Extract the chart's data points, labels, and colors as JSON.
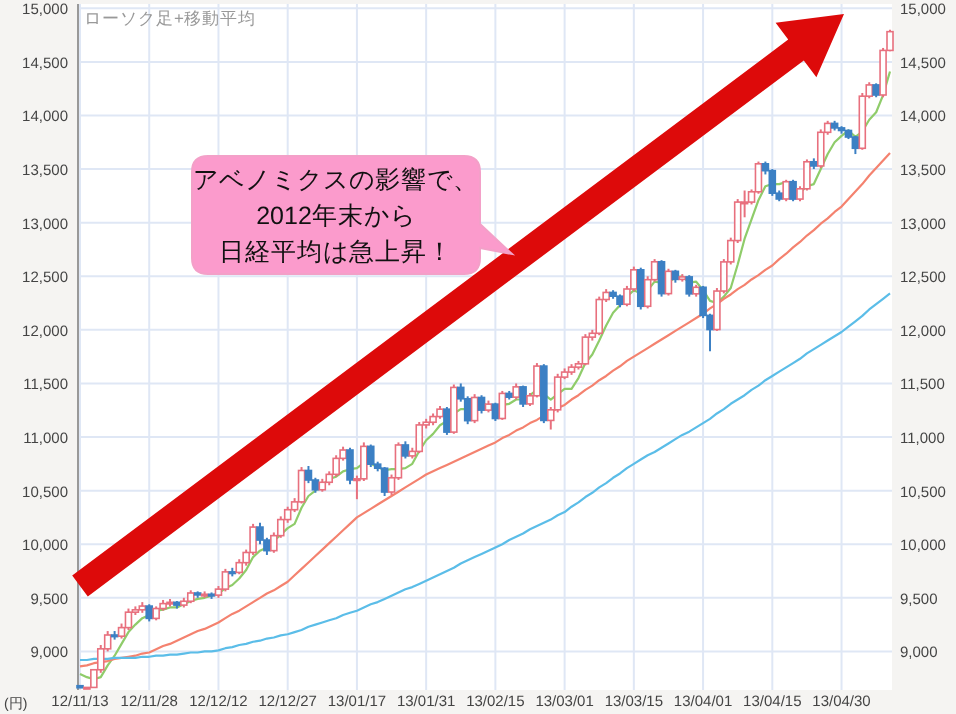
{
  "chart_data": {
    "type": "candlestick",
    "title": "ローソク足+移動平均",
    "annotations": [
      "アベノミクスの影響で、",
      "2012年末から",
      "日経平均は急上昇！",
      "(円)"
    ],
    "categories": [
      "12/11/13",
      null,
      null,
      null,
      null,
      null,
      null,
      null,
      null,
      null,
      "12/11/28",
      null,
      null,
      null,
      null,
      null,
      null,
      null,
      null,
      null,
      "12/12/12",
      null,
      null,
      null,
      null,
      null,
      null,
      null,
      null,
      null,
      "12/12/27",
      null,
      null,
      null,
      null,
      null,
      null,
      null,
      null,
      null,
      "13/01/17",
      null,
      null,
      null,
      null,
      null,
      null,
      null,
      null,
      null,
      "13/01/31",
      null,
      null,
      null,
      null,
      null,
      null,
      null,
      null,
      null,
      "13/02/15",
      null,
      null,
      null,
      null,
      null,
      null,
      null,
      null,
      null,
      "13/03/01",
      null,
      null,
      null,
      null,
      null,
      null,
      null,
      null,
      null,
      "13/03/15",
      null,
      null,
      null,
      null,
      null,
      null,
      null,
      null,
      null,
      "13/04/01",
      null,
      null,
      null,
      null,
      null,
      null,
      null,
      null,
      null,
      "13/04/15",
      null,
      null,
      null,
      null,
      null,
      null,
      null,
      null,
      null,
      "13/04/30",
      null,
      null,
      null,
      null,
      null,
      null,
      null
    ],
    "ohlc": [
      [
        8680,
        8680,
        8661,
        8661
      ],
      [
        8661,
        8664,
        8661,
        8664
      ],
      [
        8664,
        8829,
        8664,
        8829
      ],
      [
        8829,
        9060,
        8800,
        9024
      ],
      [
        9024,
        9190,
        9000,
        9153
      ],
      [
        9153,
        9190,
        9110,
        9142
      ],
      [
        9142,
        9260,
        9120,
        9222
      ],
      [
        9222,
        9400,
        9200,
        9366
      ],
      [
        9366,
        9420,
        9340,
        9388
      ],
      [
        9388,
        9460,
        9360,
        9423
      ],
      [
        9423,
        9440,
        9280,
        9308
      ],
      [
        9308,
        9420,
        9290,
        9400
      ],
      [
        9400,
        9480,
        9380,
        9446
      ],
      [
        9446,
        9490,
        9420,
        9458
      ],
      [
        9458,
        9470,
        9400,
        9432
      ],
      [
        9432,
        9500,
        9410,
        9468
      ],
      [
        9468,
        9570,
        9450,
        9545
      ],
      [
        9545,
        9560,
        9500,
        9527
      ],
      [
        9527,
        9560,
        9500,
        9533
      ],
      [
        9533,
        9550,
        9490,
        9525
      ],
      [
        9525,
        9610,
        9500,
        9581
      ],
      [
        9581,
        9770,
        9560,
        9742
      ],
      [
        9742,
        9780,
        9700,
        9737
      ],
      [
        9737,
        9860,
        9720,
        9828
      ],
      [
        9828,
        9950,
        9800,
        9923
      ],
      [
        9923,
        10190,
        9900,
        10160
      ],
      [
        10160,
        10200,
        10000,
        10039
      ],
      [
        10039,
        10060,
        9900,
        9940
      ],
      [
        9940,
        10110,
        9920,
        10080
      ],
      [
        10080,
        10260,
        10060,
        10230
      ],
      [
        10230,
        10350,
        10200,
        10322
      ],
      [
        10322,
        10430,
        10300,
        10395
      ],
      [
        10395,
        10720,
        10380,
        10688
      ],
      [
        10688,
        10730,
        10570,
        10599
      ],
      [
        10599,
        10620,
        10480,
        10508
      ],
      [
        10508,
        10610,
        10490,
        10578
      ],
      [
        10578,
        10680,
        10550,
        10652
      ],
      [
        10652,
        10830,
        10630,
        10801
      ],
      [
        10801,
        10910,
        10780,
        10879
      ],
      [
        10879,
        10900,
        10560,
        10600
      ],
      [
        10600,
        10640,
        10420,
        10610
      ],
      [
        10610,
        10950,
        10590,
        10913
      ],
      [
        10913,
        10930,
        10720,
        10747
      ],
      [
        10747,
        10770,
        10680,
        10709
      ],
      [
        10709,
        10720,
        10450,
        10487
      ],
      [
        10487,
        10650,
        10460,
        10620
      ],
      [
        10620,
        10950,
        10600,
        10926
      ],
      [
        10926,
        10960,
        10800,
        10824
      ],
      [
        10824,
        10900,
        10800,
        10866
      ],
      [
        10866,
        11140,
        10850,
        11113
      ],
      [
        11113,
        11170,
        11080,
        11138
      ],
      [
        11138,
        11220,
        11110,
        11191
      ],
      [
        11191,
        11290,
        11170,
        11260
      ],
      [
        11260,
        11280,
        11020,
        11046
      ],
      [
        11046,
        11490,
        11030,
        11463
      ],
      [
        11463,
        11500,
        11330,
        11357
      ],
      [
        11357,
        11380,
        11120,
        11153
      ],
      [
        11153,
        11400,
        11130,
        11369
      ],
      [
        11369,
        11390,
        11220,
        11251
      ],
      [
        11251,
        11340,
        11230,
        11307
      ],
      [
        11307,
        11320,
        11150,
        11173
      ],
      [
        11173,
        11430,
        11160,
        11407
      ],
      [
        11407,
        11430,
        11350,
        11372
      ],
      [
        11372,
        11500,
        11350,
        11468
      ],
      [
        11468,
        11480,
        11280,
        11309
      ],
      [
        11309,
        11410,
        11290,
        11385
      ],
      [
        11385,
        11690,
        11370,
        11662
      ],
      [
        11662,
        11680,
        11130,
        11155
      ],
      [
        11155,
        11280,
        11070,
        11254
      ],
      [
        11254,
        11590,
        11230,
        11559
      ],
      [
        11559,
        11640,
        11540,
        11606
      ],
      [
        11606,
        11680,
        11580,
        11652
      ],
      [
        11652,
        11710,
        11630,
        11683
      ],
      [
        11683,
        11960,
        11670,
        11932
      ],
      [
        11932,
        12000,
        11900,
        11968
      ],
      [
        11968,
        12310,
        11950,
        12283
      ],
      [
        12283,
        12380,
        12260,
        12349
      ],
      [
        12349,
        12370,
        12290,
        12314
      ],
      [
        12314,
        12330,
        12210,
        12239
      ],
      [
        12239,
        12410,
        12220,
        12381
      ],
      [
        12381,
        12590,
        12360,
        12560
      ],
      [
        12560,
        12580,
        12190,
        12220
      ],
      [
        12220,
        12500,
        12200,
        12468
      ],
      [
        12468,
        12660,
        12450,
        12635
      ],
      [
        12635,
        12650,
        12310,
        12338
      ],
      [
        12338,
        12570,
        12320,
        12546
      ],
      [
        12546,
        12560,
        12440,
        12471
      ],
      [
        12471,
        12520,
        12450,
        12494
      ],
      [
        12494,
        12510,
        12310,
        12336
      ],
      [
        12336,
        12420,
        12310,
        12397
      ],
      [
        12397,
        12410,
        12110,
        12135
      ],
      [
        12135,
        12150,
        11800,
        12003
      ],
      [
        12003,
        12390,
        11990,
        12362
      ],
      [
        12362,
        12660,
        12340,
        12634
      ],
      [
        12634,
        12860,
        12610,
        12833
      ],
      [
        12833,
        13220,
        12810,
        13192
      ],
      [
        13192,
        13300,
        13050,
        13192
      ],
      [
        13192,
        13310,
        13170,
        13288
      ],
      [
        13288,
        13570,
        13270,
        13549
      ],
      [
        13549,
        13570,
        13450,
        13485
      ],
      [
        13485,
        13500,
        13250,
        13275
      ],
      [
        13275,
        13300,
        13200,
        13221
      ],
      [
        13221,
        13400,
        13200,
        13382
      ],
      [
        13382,
        13400,
        13200,
        13220
      ],
      [
        13220,
        13340,
        13200,
        13316
      ],
      [
        13316,
        13590,
        13300,
        13568
      ],
      [
        13568,
        13600,
        13500,
        13529
      ],
      [
        13529,
        13870,
        13510,
        13843
      ],
      [
        13843,
        13950,
        13820,
        13926
      ],
      [
        13926,
        13950,
        13860,
        13884
      ],
      [
        13884,
        13900,
        13830,
        13860
      ],
      [
        13860,
        13870,
        13780,
        13799
      ],
      [
        13799,
        13810,
        13640,
        13694
      ],
      [
        13694,
        14210,
        13680,
        14180
      ],
      [
        14180,
        14310,
        14160,
        14285
      ],
      [
        14285,
        14300,
        14170,
        14191
      ],
      [
        14191,
        14630,
        14170,
        14607
      ],
      [
        14607,
        14800,
        14600,
        14782
      ]
    ],
    "colors": [
      "#3c80c4",
      "#e8707e",
      "#e8707e",
      "#e8707e",
      "#e8707e",
      "#3c80c4",
      "#e8707e",
      "#e8707e",
      "#e8707e",
      "#e8707e",
      "#3c80c4",
      "#e8707e",
      "#e8707e",
      "#e8707e",
      "#3c80c4",
      "#e8707e",
      "#e8707e",
      "#3c80c4",
      "#e8707e",
      "#3c80c4",
      "#e8707e",
      "#e8707e",
      "#3c80c4",
      "#e8707e",
      "#e8707e",
      "#e8707e",
      "#3c80c4",
      "#3c80c4",
      "#e8707e",
      "#e8707e",
      "#e8707e",
      "#e8707e",
      "#e8707e",
      "#3c80c4",
      "#3c80c4",
      "#e8707e",
      "#e8707e",
      "#e8707e",
      "#e8707e",
      "#3c80c4",
      "#e8707e",
      "#e8707e",
      "#3c80c4",
      "#3c80c4",
      "#3c80c4",
      "#e8707e",
      "#e8707e",
      "#3c80c4",
      "#e8707e",
      "#e8707e",
      "#e8707e",
      "#e8707e",
      "#e8707e",
      "#3c80c4",
      "#e8707e",
      "#3c80c4",
      "#3c80c4",
      "#e8707e",
      "#3c80c4",
      "#e8707e",
      "#3c80c4",
      "#e8707e",
      "#3c80c4",
      "#e8707e",
      "#3c80c4",
      "#e8707e",
      "#e8707e",
      "#3c80c4",
      "#e8707e",
      "#e8707e",
      "#e8707e",
      "#e8707e",
      "#e8707e",
      "#e8707e",
      "#e8707e",
      "#e8707e",
      "#e8707e",
      "#3c80c4",
      "#3c80c4",
      "#e8707e",
      "#e8707e",
      "#3c80c4",
      "#e8707e",
      "#e8707e",
      "#3c80c4",
      "#e8707e",
      "#3c80c4",
      "#e8707e",
      "#3c80c4",
      "#e8707e",
      "#3c80c4",
      "#3c80c4",
      "#e8707e",
      "#e8707e",
      "#e8707e",
      "#e8707e",
      "#e8707e",
      "#e8707e",
      "#e8707e",
      "#3c80c4",
      "#3c80c4",
      "#3c80c4",
      "#e8707e",
      "#3c80c4",
      "#e8707e",
      "#e8707e",
      "#3c80c4",
      "#e8707e",
      "#e8707e",
      "#3c80c4",
      "#3c80c4",
      "#3c80c4",
      "#3c80c4",
      "#e8707e",
      "#e8707e",
      "#3c80c4",
      "#e8707e",
      "#e8707e"
    ],
    "series": [
      {
        "type": "line",
        "color": "#8fcc6a",
        "values": [
          8790,
          8760,
          8740,
          8760,
          8870,
          8960,
          9070,
          9180,
          9250,
          9310,
          9340,
          9380,
          9390,
          9410,
          9410,
          9440,
          9470,
          9490,
          9500,
          9520,
          9540,
          9590,
          9620,
          9680,
          9760,
          9880,
          9940,
          9970,
          10030,
          10090,
          10150,
          10190,
          10340,
          10450,
          10500,
          10550,
          10610,
          10630,
          10680,
          10700,
          10710,
          10760,
          10750,
          10720,
          10690,
          10700,
          10700,
          10710,
          10750,
          10870,
          10970,
          11030,
          11110,
          11150,
          11220,
          11260,
          11260,
          11280,
          11320,
          11290,
          11250,
          11300,
          11310,
          11350,
          11350,
          11390,
          11440,
          11400,
          11350,
          11400,
          11450,
          11450,
          11550,
          11690,
          11770,
          11900,
          12040,
          12160,
          12230,
          12310,
          12370,
          12340,
          12370,
          12450,
          12440,
          12440,
          12490,
          12500,
          12440,
          12450,
          12370,
          12270,
          12250,
          12310,
          12390,
          12610,
          12850,
          13030,
          13210,
          13340,
          13360,
          13360,
          13380,
          13320,
          13280,
          13340,
          13360,
          13500,
          13640,
          13750,
          13810,
          13860,
          13800,
          13850,
          13960,
          14030,
          14190,
          14410
        ]
      },
      {
        "type": "line",
        "color": "#f4826f",
        "values": [
          8860,
          8870,
          8890,
          8900,
          8910,
          8930,
          8940,
          8950,
          8960,
          8980,
          8990,
          9020,
          9050,
          9070,
          9100,
          9130,
          9160,
          9190,
          9210,
          9240,
          9270,
          9310,
          9350,
          9380,
          9420,
          9460,
          9500,
          9540,
          9570,
          9610,
          9650,
          9710,
          9770,
          9830,
          9890,
          9950,
          10010,
          10070,
          10130,
          10190,
          10250,
          10290,
          10330,
          10370,
          10410,
          10450,
          10490,
          10530,
          10570,
          10610,
          10650,
          10680,
          10710,
          10740,
          10770,
          10800,
          10830,
          10860,
          10890,
          10920,
          10950,
          10990,
          11020,
          11060,
          11090,
          11130,
          11160,
          11200,
          11230,
          11270,
          11300,
          11350,
          11390,
          11440,
          11480,
          11530,
          11570,
          11620,
          11660,
          11710,
          11750,
          11790,
          11830,
          11870,
          11910,
          11950,
          11990,
          12030,
          12070,
          12110,
          12150,
          12200,
          12240,
          12290,
          12330,
          12380,
          12420,
          12470,
          12510,
          12560,
          12600,
          12660,
          12710,
          12770,
          12820,
          12880,
          12930,
          12990,
          13040,
          13100,
          13150,
          13220,
          13290,
          13360,
          13440,
          13510,
          13580,
          13650
        ]
      },
      {
        "type": "line",
        "color": "#5bbde8",
        "values": [
          8920,
          8920,
          8930,
          8930,
          8930,
          8940,
          8940,
          8940,
          8940,
          8950,
          8950,
          8960,
          8960,
          8970,
          8970,
          8980,
          8990,
          8990,
          9000,
          9000,
          9010,
          9030,
          9040,
          9060,
          9070,
          9090,
          9100,
          9120,
          9130,
          9150,
          9160,
          9180,
          9200,
          9230,
          9250,
          9270,
          9290,
          9310,
          9340,
          9360,
          9380,
          9410,
          9440,
          9460,
          9490,
          9520,
          9550,
          9580,
          9600,
          9630,
          9660,
          9690,
          9720,
          9750,
          9780,
          9820,
          9850,
          9880,
          9910,
          9940,
          9970,
          10000,
          10040,
          10070,
          10100,
          10140,
          10170,
          10200,
          10230,
          10270,
          10300,
          10350,
          10390,
          10440,
          10480,
          10530,
          10570,
          10620,
          10660,
          10710,
          10750,
          10790,
          10830,
          10860,
          10900,
          10940,
          10980,
          11020,
          11050,
          11090,
          11130,
          11170,
          11220,
          11260,
          11310,
          11350,
          11390,
          11440,
          11480,
          11530,
          11570,
          11610,
          11650,
          11690,
          11730,
          11780,
          11820,
          11860,
          11900,
          11940,
          11980,
          12030,
          12080,
          12130,
          12190,
          12240,
          12290,
          12340
        ]
      }
    ],
    "ylim": [
      8640,
      15040
    ],
    "yticks": [
      {
        "value": 9000,
        "label": "9,000"
      },
      {
        "value": 9500,
        "label": "9,500"
      },
      {
        "value": 10000,
        "label": "10,000"
      },
      {
        "value": 10500,
        "label": "10,500"
      },
      {
        "value": 11000,
        "label": "11,000"
      },
      {
        "value": 11500,
        "label": "11,500"
      },
      {
        "value": 12000,
        "label": "12,000"
      },
      {
        "value": 12500,
        "label": "12,500"
      },
      {
        "value": 13000,
        "label": "13,000"
      },
      {
        "value": 13500,
        "label": "13,500"
      },
      {
        "value": 14000,
        "label": "14,000"
      },
      {
        "value": 14500,
        "label": "14,500"
      },
      {
        "value": 15000,
        "label": "15,000"
      }
    ],
    "y2lim": [
      8640,
      15040
    ],
    "y2ticks": [
      {
        "value": 9000,
        "label": "9,000"
      },
      {
        "value": 9500,
        "label": "9,500"
      },
      {
        "value": 10000,
        "label": "10,000"
      },
      {
        "value": 10500,
        "label": "10,500"
      },
      {
        "value": 11000,
        "label": "11,000"
      },
      {
        "value": 11500,
        "label": "11,500"
      },
      {
        "value": 12000,
        "label": "12,000"
      },
      {
        "value": 12500,
        "label": "12,500"
      },
      {
        "value": 13000,
        "label": "13,000"
      },
      {
        "value": 13500,
        "label": "13,500"
      },
      {
        "value": 14000,
        "label": "14,000"
      },
      {
        "value": 14500,
        "label": "14,500"
      },
      {
        "value": 15000,
        "label": "15,000"
      }
    ],
    "grid": true
  }
}
